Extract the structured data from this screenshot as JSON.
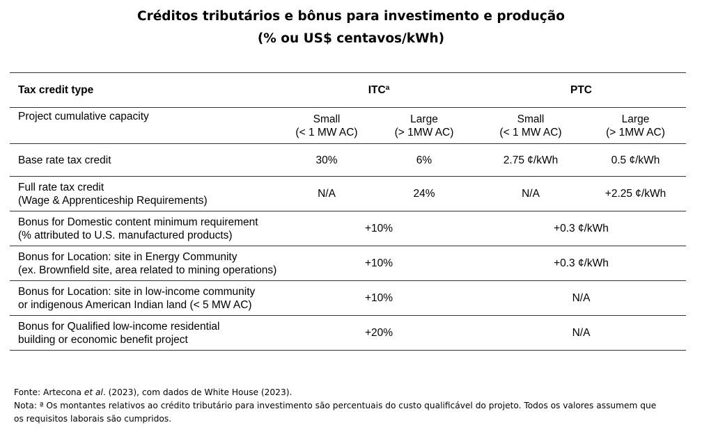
{
  "title": {
    "line1": "Créditos tributários e bônus para investimento e produção",
    "line2": "(% ou US$ centavos/kWh)"
  },
  "table": {
    "header": {
      "type_label": "Tax credit type",
      "itc_label": "ITC",
      "itc_sup": "a",
      "ptc_label": "PTC"
    },
    "capacity": {
      "label": "Project cumulative capacity",
      "small": "Small",
      "small_sub": "(< 1 MW AC)",
      "large": "Large",
      "large_sub": "(> 1MW AC)"
    },
    "base_rate": {
      "label": "Base rate tax credit",
      "itc_small": "30%",
      "itc_large": "6%",
      "ptc_small": "2.75 ¢/kWh",
      "ptc_large": "0.5 ¢/kWh"
    },
    "full_rate": {
      "label": "Full rate tax credit",
      "sub": "(Wage & Apprenticeship Requirements)",
      "itc_small": "N/A",
      "itc_large": "24%",
      "ptc_small": "N/A",
      "ptc_large": "+2.25 ¢/kWh"
    },
    "bonus_domestic": {
      "label": "Bonus for Domestic content minimum requirement",
      "sub": "(% attributed to U.S. manufactured products)",
      "itc": "+10%",
      "ptc": "+0.3 ¢/kWh"
    },
    "bonus_energy": {
      "label": "Bonus for Location: site in Energy Community",
      "sub": "(ex. Brownfield site, area related to mining operations)",
      "itc": "+10%",
      "ptc": "+0.3 ¢/kWh"
    },
    "bonus_lowincome": {
      "label": "Bonus for Location: site in low-income community",
      "sub": "or indigenous American Indian land (< 5 MW AC)",
      "itc": "+10%",
      "ptc": "N/A"
    },
    "bonus_residential": {
      "label": "Bonus for Qualified low-income residential",
      "sub": "building or economic benefit project",
      "itc": "+20%",
      "ptc": "N/A"
    }
  },
  "footer": {
    "source_prefix": "Fonte: Artecona ",
    "source_italic": "et al",
    "source_suffix": ". (2023), com dados de White House (2023).",
    "note_line1": "Nota: ª Os montantes relativos ao crédito tributário para investimento são percentuais do custo qualificável do projeto. Todos os valores assumem que",
    "note_line2": "os requisitos laborais são cumpridos."
  }
}
